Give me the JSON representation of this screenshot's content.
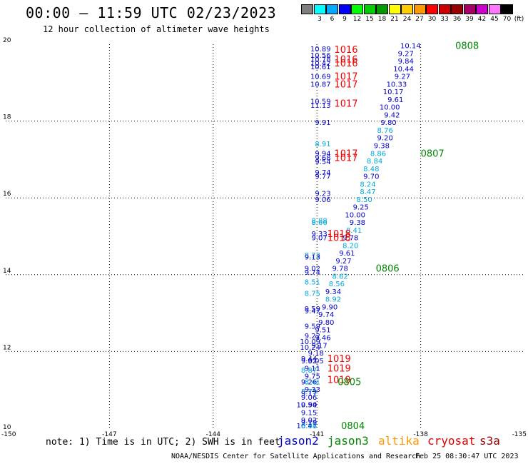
{
  "header": {
    "title": "00:00 – 11:59 UTC 02/23/2023",
    "subtitle": "12 hour collection of altimeter wave heights"
  },
  "legend": {
    "unit_label": "(ft)",
    "bins": [
      {
        "label": "",
        "color": "#7f7f7f"
      },
      {
        "label": "3",
        "color": "#00ffff"
      },
      {
        "label": "6",
        "color": "#00aaff"
      },
      {
        "label": "9",
        "color": "#0000ff"
      },
      {
        "label": "12",
        "color": "#00ff00"
      },
      {
        "label": "15",
        "color": "#00cc00"
      },
      {
        "label": "18",
        "color": "#009900"
      },
      {
        "label": "21",
        "color": "#ffff00"
      },
      {
        "label": "24",
        "color": "#ffcc00"
      },
      {
        "label": "27",
        "color": "#ff9900"
      },
      {
        "label": "30",
        "color": "#ff0000"
      },
      {
        "label": "33",
        "color": "#cc0000"
      },
      {
        "label": "36",
        "color": "#990000"
      },
      {
        "label": "39",
        "color": "#aa0066"
      },
      {
        "label": "42",
        "color": "#cc00cc"
      },
      {
        "label": "45",
        "color": "#ff77ff"
      },
      {
        "label": "70",
        "color": "#000000"
      }
    ]
  },
  "footer": {
    "note": "note: 1) Time is in UTC; 2) SWH is in feet",
    "missions": [
      {
        "name": "jason2",
        "color": "#0000cc"
      },
      {
        "name": "jason3",
        "color": "#008800"
      },
      {
        "name": "altika",
        "color": "#ff9900"
      },
      {
        "name": "cryosat",
        "color": "#dd0000"
      },
      {
        "name": "s3a",
        "color": "#990000"
      }
    ],
    "credit": "NOAA/NESDIS Center for Satellite Applications and Research",
    "timestamp": "Feb 25 08:30:47 UTC 2023"
  },
  "chart_data": {
    "type": "scatter",
    "title": "00:00 – 11:59 UTC 02/23/2023",
    "subtitle": "12 hour collection of altimeter wave heights",
    "xlim": [
      -150,
      -135
    ],
    "ylim": [
      10,
      20
    ],
    "x_ticks": [
      "-150",
      "-147",
      "-144",
      "-141",
      "-138",
      "-135"
    ],
    "y_ticks": [
      "10",
      "12",
      "14",
      "16",
      "18",
      "20"
    ],
    "grid": true,
    "point_colors": {
      "blue": "#0000cc",
      "cyan": "#00aadd",
      "red": "#ee0000",
      "green": "#008800"
    },
    "wave_heights": [
      {
        "x": -140.6,
        "y": 19.89,
        "v": "10.89",
        "c": "blue"
      },
      {
        "x": -140.6,
        "y": 19.72,
        "v": "10.56",
        "c": "blue"
      },
      {
        "x": -140.6,
        "y": 19.62,
        "v": "10.78",
        "c": "blue"
      },
      {
        "x": -140.6,
        "y": 19.52,
        "v": "10.42",
        "c": "blue"
      },
      {
        "x": -140.6,
        "y": 19.42,
        "v": "10.61",
        "c": "blue"
      },
      {
        "x": -140.6,
        "y": 19.17,
        "v": "10.69",
        "c": "blue"
      },
      {
        "x": -140.6,
        "y": 18.97,
        "v": "10.87",
        "c": "blue"
      },
      {
        "x": -140.6,
        "y": 18.52,
        "v": "10.59",
        "c": "blue"
      },
      {
        "x": -140.6,
        "y": 18.42,
        "v": "11.13",
        "c": "blue"
      },
      {
        "x": -140.6,
        "y": 17.97,
        "v": "9.91",
        "c": "blue"
      },
      {
        "x": -140.6,
        "y": 17.42,
        "v": "8.91",
        "c": "cyan"
      },
      {
        "x": -140.6,
        "y": 17.17,
        "v": "9.94",
        "c": "blue"
      },
      {
        "x": -140.6,
        "y": 17.05,
        "v": "9.68",
        "c": "blue"
      },
      {
        "x": -140.6,
        "y": 16.95,
        "v": "9.54",
        "c": "blue"
      },
      {
        "x": -140.6,
        "y": 16.67,
        "v": "9.74",
        "c": "blue"
      },
      {
        "x": -140.6,
        "y": 16.57,
        "v": "9.77",
        "c": "blue"
      },
      {
        "x": -140.6,
        "y": 16.12,
        "v": "9.23",
        "c": "blue"
      },
      {
        "x": -140.6,
        "y": 15.97,
        "v": "9.06",
        "c": "blue"
      },
      {
        "x": -140.7,
        "y": 15.42,
        "v": "8.88",
        "c": "cyan"
      },
      {
        "x": -140.7,
        "y": 15.37,
        "v": "8.66",
        "c": "cyan"
      },
      {
        "x": -140.7,
        "y": 15.07,
        "v": "9.33",
        "c": "blue"
      },
      {
        "x": -140.7,
        "y": 14.97,
        "v": "9.07",
        "c": "blue"
      },
      {
        "x": -140.9,
        "y": 14.52,
        "v": "8.73",
        "c": "cyan"
      },
      {
        "x": -140.9,
        "y": 14.47,
        "v": "9.13",
        "c": "blue"
      },
      {
        "x": -140.9,
        "y": 14.17,
        "v": "9.02",
        "c": "blue"
      },
      {
        "x": -140.9,
        "y": 14.07,
        "v": "9.74",
        "c": "blue"
      },
      {
        "x": -140.9,
        "y": 13.82,
        "v": "8.51",
        "c": "cyan"
      },
      {
        "x": -140.9,
        "y": 13.52,
        "v": "8.75",
        "c": "cyan"
      },
      {
        "x": -140.9,
        "y": 13.12,
        "v": "9.59",
        "c": "blue"
      },
      {
        "x": -140.9,
        "y": 13.07,
        "v": "9.47",
        "c": "blue"
      },
      {
        "x": -140.9,
        "y": 12.67,
        "v": "9.59",
        "c": "blue"
      },
      {
        "x": -140.9,
        "y": 12.42,
        "v": "9.22",
        "c": "blue"
      },
      {
        "x": -140.9,
        "y": 12.27,
        "v": "10.09",
        "c": "blue"
      },
      {
        "x": -140.9,
        "y": 12.12,
        "v": "10.24",
        "c": "blue"
      },
      {
        "x": -141.0,
        "y": 11.82,
        "v": "9.44",
        "c": "blue"
      },
      {
        "x": -141.0,
        "y": 11.77,
        "v": "9.02",
        "c": "blue"
      },
      {
        "x": -141.0,
        "y": 11.52,
        "v": "8.87",
        "c": "cyan"
      },
      {
        "x": -141.0,
        "y": 11.22,
        "v": "9.26",
        "c": "blue"
      },
      {
        "x": -141.0,
        "y": 10.97,
        "v": "8.79",
        "c": "cyan"
      },
      {
        "x": -141.0,
        "y": 10.92,
        "v": "9.17",
        "c": "blue"
      },
      {
        "x": -141.0,
        "y": 10.62,
        "v": "9.90",
        "c": "blue"
      },
      {
        "x": -141.0,
        "y": 10.17,
        "v": "9.19",
        "c": "blue"
      },
      {
        "x": -141.0,
        "y": 10.07,
        "v": "10.47",
        "c": "blue"
      },
      {
        "x": -138.0,
        "y": 19.97,
        "v": "10.14",
        "c": "blue"
      },
      {
        "x": -138.2,
        "y": 19.77,
        "v": "9.27",
        "c": "blue"
      },
      {
        "x": -138.2,
        "y": 19.57,
        "v": "9.84",
        "c": "blue"
      },
      {
        "x": -138.2,
        "y": 19.37,
        "v": "10.44",
        "c": "blue"
      },
      {
        "x": -138.3,
        "y": 19.17,
        "v": "9.27",
        "c": "blue"
      },
      {
        "x": -138.4,
        "y": 18.97,
        "v": "10.33",
        "c": "blue"
      },
      {
        "x": -138.5,
        "y": 18.77,
        "v": "10.17",
        "c": "blue"
      },
      {
        "x": -138.5,
        "y": 18.57,
        "v": "9.61",
        "c": "blue"
      },
      {
        "x": -138.6,
        "y": 18.37,
        "v": "10.00",
        "c": "blue"
      },
      {
        "x": -138.6,
        "y": 18.17,
        "v": "9.42",
        "c": "blue"
      },
      {
        "x": -138.7,
        "y": 17.97,
        "v": "9.80",
        "c": "blue"
      },
      {
        "x": -138.8,
        "y": 17.77,
        "v": "8.76",
        "c": "cyan"
      },
      {
        "x": -138.8,
        "y": 17.57,
        "v": "9.20",
        "c": "blue"
      },
      {
        "x": -138.9,
        "y": 17.37,
        "v": "9.38",
        "c": "blue"
      },
      {
        "x": -139.0,
        "y": 17.17,
        "v": "8.86",
        "c": "cyan"
      },
      {
        "x": -139.1,
        "y": 16.97,
        "v": "8.84",
        "c": "cyan"
      },
      {
        "x": -139.2,
        "y": 16.77,
        "v": "8.48",
        "c": "cyan"
      },
      {
        "x": -139.2,
        "y": 16.57,
        "v": "9.70",
        "c": "blue"
      },
      {
        "x": -139.3,
        "y": 16.37,
        "v": "8.24",
        "c": "cyan"
      },
      {
        "x": -139.3,
        "y": 16.17,
        "v": "8.47",
        "c": "cyan"
      },
      {
        "x": -139.4,
        "y": 15.97,
        "v": "8.50",
        "c": "cyan"
      },
      {
        "x": -139.5,
        "y": 15.77,
        "v": "9.25",
        "c": "blue"
      },
      {
        "x": -139.6,
        "y": 15.57,
        "v": "10.00",
        "c": "blue"
      },
      {
        "x": -139.6,
        "y": 15.37,
        "v": "9.38",
        "c": "blue"
      },
      {
        "x": -139.7,
        "y": 15.17,
        "v": "8.41",
        "c": "cyan"
      },
      {
        "x": -139.8,
        "y": 14.97,
        "v": "9.78",
        "c": "blue"
      },
      {
        "x": -139.8,
        "y": 14.77,
        "v": "8.20",
        "c": "cyan"
      },
      {
        "x": -139.9,
        "y": 14.57,
        "v": "9.61",
        "c": "blue"
      },
      {
        "x": -140.0,
        "y": 14.37,
        "v": "9.27",
        "c": "blue"
      },
      {
        "x": -140.1,
        "y": 14.17,
        "v": "9.78",
        "c": "blue"
      },
      {
        "x": -140.1,
        "y": 13.97,
        "v": "8.62",
        "c": "cyan"
      },
      {
        "x": -140.2,
        "y": 13.77,
        "v": "8.56",
        "c": "cyan"
      },
      {
        "x": -140.3,
        "y": 13.57,
        "v": "9.34",
        "c": "blue"
      },
      {
        "x": -140.3,
        "y": 13.37,
        "v": "8.92",
        "c": "cyan"
      },
      {
        "x": -140.4,
        "y": 13.17,
        "v": "9.90",
        "c": "blue"
      },
      {
        "x": -140.5,
        "y": 12.97,
        "v": "9.74",
        "c": "blue"
      },
      {
        "x": -140.5,
        "y": 12.77,
        "v": "9.80",
        "c": "blue"
      },
      {
        "x": -140.6,
        "y": 12.57,
        "v": "9.51",
        "c": "blue"
      },
      {
        "x": -140.6,
        "y": 12.37,
        "v": "9.46",
        "c": "blue"
      },
      {
        "x": -140.7,
        "y": 12.17,
        "v": "9.17",
        "c": "blue"
      },
      {
        "x": -140.8,
        "y": 11.97,
        "v": "9.18",
        "c": "blue"
      },
      {
        "x": -140.8,
        "y": 11.77,
        "v": "9.05",
        "c": "blue"
      },
      {
        "x": -140.9,
        "y": 11.57,
        "v": "9.11",
        "c": "blue"
      },
      {
        "x": -140.9,
        "y": 11.37,
        "v": "9.75",
        "c": "blue"
      },
      {
        "x": -140.9,
        "y": 11.22,
        "v": "8.41",
        "c": "cyan"
      },
      {
        "x": -140.9,
        "y": 11.02,
        "v": "9.33",
        "c": "blue"
      },
      {
        "x": -141.0,
        "y": 10.82,
        "v": "9.06",
        "c": "blue"
      },
      {
        "x": -141.0,
        "y": 10.62,
        "v": "10.54",
        "c": "blue"
      },
      {
        "x": -141.0,
        "y": 10.42,
        "v": "9.15",
        "c": "blue"
      },
      {
        "x": -141.0,
        "y": 10.22,
        "v": "9.02",
        "c": "blue"
      },
      {
        "x": -141.0,
        "y": 10.07,
        "v": "8.98",
        "c": "cyan"
      }
    ],
    "pressure_labels": [
      {
        "x": -140.5,
        "y": 19.87,
        "v": "1016",
        "c": "red"
      },
      {
        "x": -140.5,
        "y": 19.62,
        "v": "1016",
        "c": "red"
      },
      {
        "x": -140.5,
        "y": 19.52,
        "v": "1016",
        "c": "red"
      },
      {
        "x": -140.5,
        "y": 19.17,
        "v": "1017",
        "c": "red"
      },
      {
        "x": -140.5,
        "y": 18.97,
        "v": "1017",
        "c": "red"
      },
      {
        "x": -140.5,
        "y": 18.47,
        "v": "1017",
        "c": "red"
      },
      {
        "x": -140.5,
        "y": 17.17,
        "v": "1017",
        "c": "red"
      },
      {
        "x": -140.5,
        "y": 17.05,
        "v": "1017",
        "c": "red"
      },
      {
        "x": -140.7,
        "y": 15.07,
        "v": "1018",
        "c": "red"
      },
      {
        "x": -140.7,
        "y": 14.97,
        "v": "1018",
        "c": "red"
      },
      {
        "x": -140.7,
        "y": 11.82,
        "v": "1019",
        "c": "red"
      },
      {
        "x": -140.7,
        "y": 11.57,
        "v": "1019",
        "c": "red"
      },
      {
        "x": -140.7,
        "y": 11.27,
        "v": "1019",
        "c": "red"
      }
    ],
    "time_labels": [
      {
        "x": -137.0,
        "y": 19.97,
        "v": "0808",
        "c": "green"
      },
      {
        "x": -138.0,
        "y": 17.17,
        "v": "0807",
        "c": "green"
      },
      {
        "x": -139.3,
        "y": 14.17,
        "v": "0806",
        "c": "green"
      },
      {
        "x": -140.4,
        "y": 11.22,
        "v": "0805",
        "c": "green"
      },
      {
        "x": -140.3,
        "y": 10.07,
        "v": "0804",
        "c": "green"
      }
    ]
  }
}
